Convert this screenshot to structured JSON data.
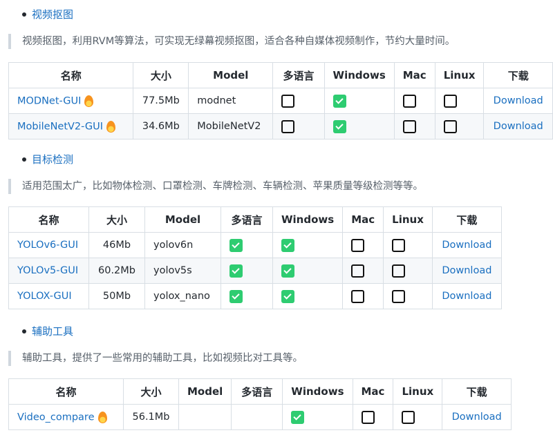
{
  "colors": {
    "link": "#1a6fc0",
    "check": "#2ecc71"
  },
  "headers": [
    "名称",
    "大小",
    "Model",
    "多语言",
    "Windows",
    "Mac",
    "Linux",
    "下载"
  ],
  "sections": [
    {
      "title": "视频抠图",
      "desc": "视频抠图，利用RVM等算法，可实现无绿幕视频抠图，适合各种自媒体视频制作，节约大量时间。",
      "rows": [
        {
          "name": "MODNet-GUI",
          "hot": true,
          "size": "77.5Mb",
          "model": "modnet",
          "multilang": false,
          "windows": true,
          "mac": false,
          "linux": false,
          "download": "Download"
        },
        {
          "name": "MobileNetV2-GUI",
          "hot": true,
          "size": "34.6Mb",
          "model": "MobileNetV2",
          "multilang": false,
          "windows": true,
          "mac": false,
          "linux": false,
          "download": "Download"
        }
      ]
    },
    {
      "title": "目标检测",
      "desc": "适用范围太广，比如物体检测、口罩检测、车牌检测、车辆检测、苹果质量等级检测等等。",
      "rows": [
        {
          "name": "YOLOv6-GUI",
          "hot": false,
          "size": "46Mb",
          "model": "yolov6n",
          "multilang": true,
          "windows": true,
          "mac": false,
          "linux": false,
          "download": "Download"
        },
        {
          "name": "YOLOv5-GUI",
          "hot": false,
          "size": "60.2Mb",
          "model": "yolov5s",
          "multilang": true,
          "windows": true,
          "mac": false,
          "linux": false,
          "download": "Download"
        },
        {
          "name": "YOLOX-GUI",
          "hot": false,
          "size": "50Mb",
          "model": "yolox_nano",
          "multilang": true,
          "windows": true,
          "mac": false,
          "linux": false,
          "download": "Download"
        }
      ]
    },
    {
      "title": "辅助工具",
      "desc": "辅助工具，提供了一些常用的辅助工具，比如视频比对工具等。",
      "rows": [
        {
          "name": "Video_compare",
          "hot": true,
          "size": "56.1Mb",
          "model": null,
          "multilang": null,
          "windows": true,
          "mac": false,
          "linux": false,
          "download": "Download"
        }
      ]
    }
  ]
}
